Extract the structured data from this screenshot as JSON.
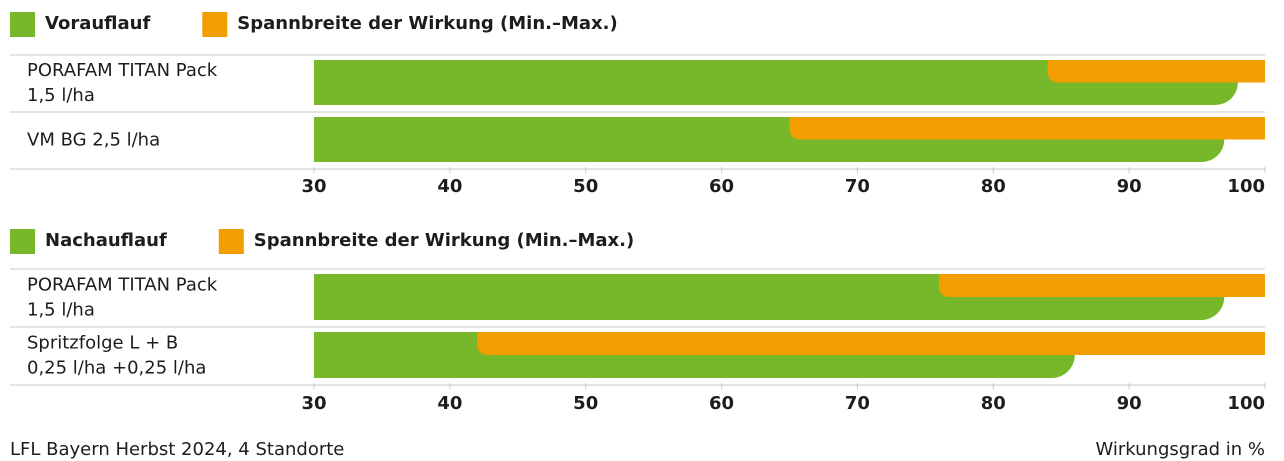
{
  "chart_data": [
    {
      "type": "bar",
      "categories": [
        [
          "PORAFAM TITAN Pack",
          "1,5 l/ha"
        ],
        [
          "VM BG 2,5 l/ha"
        ]
      ],
      "series": [
        {
          "name": "Vorauflauf",
          "color": "#76b82a",
          "values": [
            98,
            97
          ]
        }
      ],
      "range": {
        "name": "Spannbreite der Wirkung (Min.–Max.)",
        "color": "#f29e00",
        "min": [
          84,
          65
        ],
        "max": [
          100,
          100
        ]
      },
      "xlim": [
        30,
        100
      ],
      "xticks": [
        30,
        40,
        50,
        60,
        70,
        80,
        90,
        100
      ]
    },
    {
      "type": "bar",
      "categories": [
        [
          "PORAFAM TITAN Pack",
          "1,5 l/ha"
        ],
        [
          "Spritzfolge L + B",
          "0,25 l/ha +0,25 l/ha"
        ]
      ],
      "series": [
        {
          "name": "Nachauflauf",
          "color": "#76b82a",
          "values": [
            97,
            86
          ]
        }
      ],
      "range": {
        "name": "Spannbreite der Wirkung (Min.–Max.)",
        "color": "#f29e00",
        "min": [
          76,
          42
        ],
        "max": [
          100,
          100
        ]
      },
      "xlim": [
        30,
        100
      ],
      "xticks": [
        30,
        40,
        50,
        60,
        70,
        80,
        90,
        100
      ]
    }
  ],
  "footer": {
    "source": "LFL Bayern Herbst 2024, 4 Standorte",
    "xlabel": "Wirkungsgrad in %"
  }
}
